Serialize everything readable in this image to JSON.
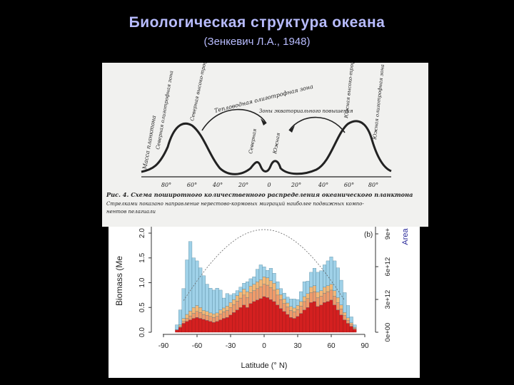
{
  "slide": {
    "title": "Биологическая структура океана",
    "subtitle": "(Зенкевич Л.А., 1948)"
  },
  "scan": {
    "zone_labels": [
      "Масса планктона",
      "Северная олиготрофная зона",
      "Северная высоко-трофная зона",
      "Тепловодная олиготрофная зона",
      "Зоны экваториального повышения",
      "Северная",
      "Южная",
      "Южная высоко-трофная зона",
      "Южная олиготрофная зона"
    ],
    "ticks": [
      "80°",
      "60°",
      "40°",
      "20°",
      "0",
      "20°",
      "40°",
      "60°",
      "80°"
    ],
    "caption_line1": "Рис. 4. Схема поширотного количественного распределения океанического планктона",
    "caption_line2": "Стрелками показано направление нерестово-кормовых миграций наиболее подвижных компо-",
    "caption_line3": "нентов пелагиали"
  },
  "chart_data": {
    "type": "bar",
    "panel_label": "(b)",
    "xlabel": "Latitude (° N)",
    "ylabel": "Biomass (Me",
    "y2label": "Area",
    "xlim": [
      -90,
      90
    ],
    "ylim": [
      0,
      2.0
    ],
    "xticks": [
      "-90",
      "-60",
      "-30",
      "0",
      "30",
      "60",
      "90"
    ],
    "yticks": [
      "0.0",
      "0.5",
      "1.0",
      "1.5",
      "2.0"
    ],
    "y2ticks": [
      "0e+00",
      "3e+12",
      "6e+12",
      "9e+"
    ],
    "x": [
      -78,
      -75,
      -72,
      -69,
      -66,
      -63,
      -60,
      -57,
      -54,
      -51,
      -48,
      -45,
      -42,
      -39,
      -36,
      -33,
      -30,
      -27,
      -24,
      -21,
      -18,
      -15,
      -12,
      -9,
      -6,
      -3,
      0,
      3,
      6,
      9,
      12,
      15,
      18,
      21,
      24,
      27,
      30,
      33,
      36,
      39,
      42,
      45,
      48,
      51,
      54,
      57,
      60,
      63,
      66,
      69,
      72,
      75,
      78,
      81
    ],
    "series": [
      {
        "values": [
          0.05,
          0.1,
          0.18,
          0.22,
          0.25,
          0.28,
          0.3,
          0.28,
          0.26,
          0.24,
          0.22,
          0.2,
          0.22,
          0.25,
          0.28,
          0.3,
          0.35,
          0.4,
          0.45,
          0.5,
          0.55,
          0.5,
          0.58,
          0.62,
          0.65,
          0.68,
          0.72,
          0.7,
          0.66,
          0.62,
          0.55,
          0.48,
          0.42,
          0.36,
          0.3,
          0.28,
          0.32,
          0.38,
          0.45,
          0.5,
          0.6,
          0.62,
          0.52,
          0.55,
          0.6,
          0.62,
          0.65,
          0.55,
          0.45,
          0.35,
          0.25,
          0.18,
          0.12,
          0.06
        ]
      },
      {
        "values": [
          0.0,
          0.02,
          0.04,
          0.06,
          0.08,
          0.1,
          0.12,
          0.12,
          0.1,
          0.1,
          0.1,
          0.1,
          0.1,
          0.12,
          0.13,
          0.14,
          0.15,
          0.16,
          0.18,
          0.19,
          0.2,
          0.2,
          0.22,
          0.22,
          0.23,
          0.24,
          0.25,
          0.25,
          0.24,
          0.23,
          0.2,
          0.18,
          0.16,
          0.15,
          0.14,
          0.13,
          0.14,
          0.15,
          0.17,
          0.18,
          0.2,
          0.2,
          0.18,
          0.18,
          0.19,
          0.2,
          0.2,
          0.18,
          0.15,
          0.12,
          0.09,
          0.06,
          0.04,
          0.02
        ]
      },
      {
        "values": [
          0.0,
          0.03,
          0.06,
          0.08,
          0.1,
          0.12,
          0.12,
          0.1,
          0.08,
          0.08,
          0.07,
          0.07,
          0.07,
          0.08,
          0.08,
          0.09,
          0.1,
          0.1,
          0.11,
          0.12,
          0.12,
          0.12,
          0.13,
          0.13,
          0.14,
          0.14,
          0.15,
          0.15,
          0.14,
          0.14,
          0.12,
          0.1,
          0.09,
          0.08,
          0.08,
          0.08,
          0.08,
          0.09,
          0.1,
          0.1,
          0.11,
          0.12,
          0.11,
          0.11,
          0.12,
          0.12,
          0.12,
          0.11,
          0.1,
          0.08,
          0.06,
          0.05,
          0.03,
          0.02
        ]
      },
      {
        "values": [
          0.1,
          0.3,
          0.6,
          1.1,
          1.4,
          1.0,
          0.9,
          0.8,
          0.7,
          0.55,
          0.5,
          0.48,
          0.5,
          0.4,
          0.2,
          0.25,
          0.15,
          0.12,
          0.1,
          0.1,
          0.12,
          0.2,
          0.15,
          0.15,
          0.25,
          0.3,
          0.2,
          0.15,
          0.25,
          0.2,
          0.15,
          0.12,
          0.12,
          0.12,
          0.15,
          0.18,
          0.12,
          0.2,
          0.3,
          0.25,
          0.3,
          0.35,
          0.4,
          0.4,
          0.45,
          0.5,
          0.55,
          0.6,
          0.6,
          0.5,
          0.4,
          0.25,
          0.12,
          0.05
        ]
      }
    ]
  }
}
